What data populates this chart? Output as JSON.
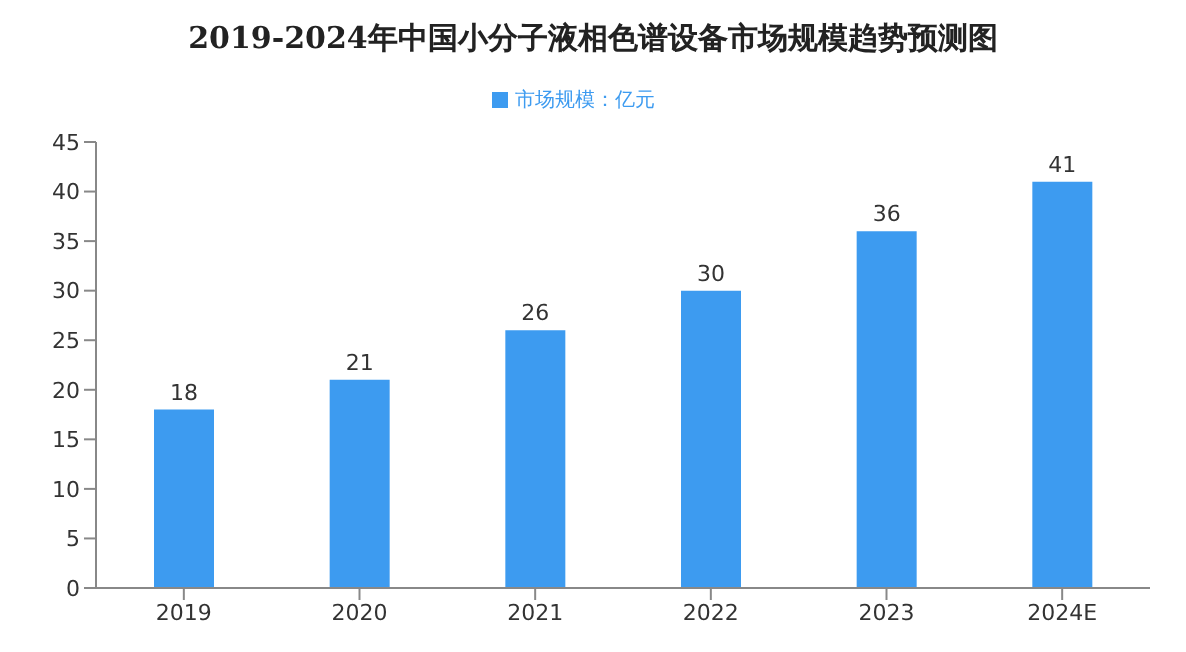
{
  "chart_data": {
    "type": "bar",
    "title": "2019-2024年中国小分子液相色谱设备市场规模趋势预测图",
    "categories": [
      "2019",
      "2020",
      "2021",
      "2022",
      "2023",
      "2024E"
    ],
    "series": [
      {
        "name": "市场规模：亿元",
        "color": "#3d9bf0",
        "values": [
          18,
          21,
          26,
          30,
          36,
          41
        ]
      }
    ],
    "ylim": [
      0,
      45
    ],
    "yticks": [
      0,
      5,
      10,
      15,
      20,
      25,
      30,
      35,
      40,
      45
    ],
    "data_labels": true,
    "legend": "top",
    "grid": false
  }
}
